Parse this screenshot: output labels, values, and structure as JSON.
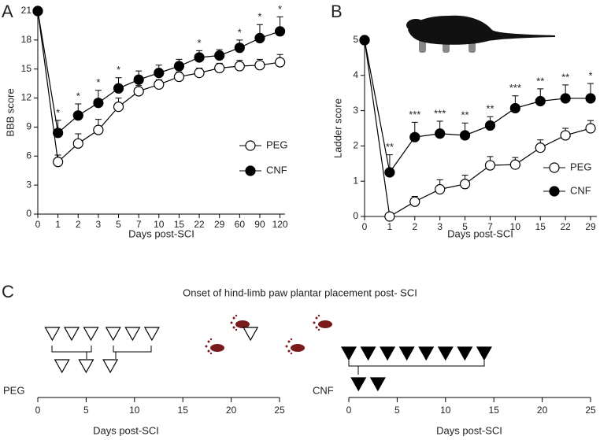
{
  "chart_data": [
    {
      "type": "line",
      "panel": "A",
      "ylabel": "BBB score",
      "xlabel": "Days post-SCI",
      "categories": [
        "0",
        "1",
        "2",
        "3",
        "5",
        "7",
        "10",
        "15",
        "22",
        "29",
        "60",
        "90",
        "120"
      ],
      "ylim": [
        0,
        21
      ],
      "yticks": [
        0,
        3,
        6,
        9,
        12,
        15,
        18,
        21
      ],
      "series": [
        {
          "name": "PEG",
          "color": "#000000",
          "marker_fill": "#ffffff",
          "values": [
            21,
            5.4,
            7.3,
            8.7,
            11.1,
            12.7,
            13.4,
            14.2,
            14.6,
            15.1,
            15.3,
            15.4,
            15.7
          ],
          "errors": [
            null,
            0.7,
            1.0,
            1.1,
            0.9,
            0.6,
            0.5,
            0.5,
            0.5,
            0.5,
            0.6,
            0.6,
            0.8
          ]
        },
        {
          "name": "CNF",
          "color": "#000000",
          "marker_fill": "#000000",
          "values": [
            21,
            8.4,
            10.2,
            11.5,
            13.0,
            13.9,
            14.6,
            15.3,
            16.2,
            16.4,
            17.2,
            18.2,
            18.9
          ],
          "errors": [
            null,
            1.3,
            1.2,
            1.3,
            1.1,
            0.9,
            0.8,
            0.7,
            0.7,
            0.6,
            0.8,
            1.4,
            1.5
          ]
        }
      ],
      "significance": [
        null,
        "*",
        "*",
        "*",
        "*",
        null,
        null,
        null,
        "*",
        null,
        "*",
        "*",
        "*"
      ]
    },
    {
      "type": "line",
      "panel": "B",
      "ylabel": "Ladder score",
      "xlabel": "Days post-SCI",
      "categories": [
        "0",
        "1",
        "2",
        "3",
        "5",
        "7",
        "10",
        "15",
        "22",
        "29"
      ],
      "ylim": [
        0,
        5
      ],
      "yticks": [
        0,
        1,
        2,
        3,
        4,
        5
      ],
      "series": [
        {
          "name": "PEG",
          "color": "#000000",
          "marker_fill": "#ffffff",
          "values": [
            5,
            0,
            0.42,
            0.77,
            0.92,
            1.45,
            1.47,
            1.95,
            2.3,
            2.5
          ],
          "errors": [
            null,
            null,
            0.15,
            0.27,
            0.25,
            0.25,
            0.2,
            0.22,
            0.2,
            0.22
          ]
        },
        {
          "name": "CNF",
          "color": "#000000",
          "marker_fill": "#000000",
          "values": [
            5,
            1.25,
            2.25,
            2.35,
            2.3,
            2.58,
            3.07,
            3.27,
            3.35,
            3.35
          ],
          "errors": [
            null,
            0.5,
            0.42,
            0.35,
            0.35,
            0.25,
            0.35,
            0.35,
            0.38,
            0.42
          ]
        }
      ],
      "significance": [
        null,
        "**",
        "***",
        "***",
        "**",
        "**",
        "***",
        "**",
        "**",
        "*"
      ]
    },
    {
      "type": "onset",
      "panel": "C",
      "title": "Onset of hind-limb paw plantar placement post- SCI",
      "xlabel": "Days post-SCI",
      "xlim": [
        0,
        25
      ],
      "xticks": [
        0,
        5,
        10,
        15,
        20,
        25
      ],
      "series": [
        {
          "name": "PEG",
          "color": "#000000",
          "marker_fill": "#ffffff",
          "values": [
            1.5,
            3.5,
            5.5,
            7.8,
            9.8,
            11.8,
            2.5,
            5,
            7.5,
            22
          ]
        }
      ]
    },
    {
      "type": "onset",
      "xlabel": "Days post-SCI",
      "xlim": [
        0,
        25
      ],
      "xticks": [
        0,
        5,
        10,
        15,
        20,
        25
      ],
      "series": [
        {
          "name": "CNF",
          "color": "#000000",
          "marker_fill": "#000000",
          "values": [
            0,
            2,
            4,
            6,
            8,
            10,
            12,
            14,
            1,
            3
          ]
        }
      ]
    }
  ]
}
